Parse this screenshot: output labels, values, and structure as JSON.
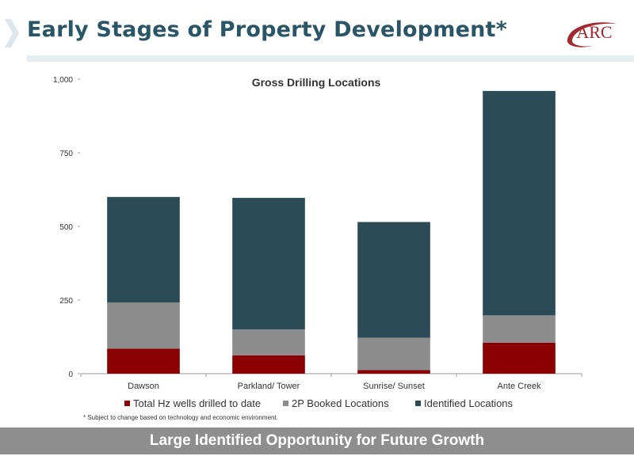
{
  "slide": {
    "title": "Early Stages of Property Development",
    "title_mark": "*",
    "logo_text": "ARC",
    "footnote": "* Subject to change based on technology and economic environment.",
    "banner": "Large Identified Opportunity for Future Growth"
  },
  "colors": {
    "title": "#2a5566",
    "logo": "#a3282f",
    "banner": "#8e8e8e",
    "series": [
      "#8b0000",
      "#8c8c8c",
      "#2b4b57"
    ]
  },
  "chart_data": {
    "type": "bar",
    "stacked": true,
    "title": "Gross Drilling Locations",
    "xlabel": "",
    "ylabel": "",
    "categories": [
      "Dawson",
      "Parkland/ Tower",
      "Sunrise/ Sunset",
      "Ante Creek"
    ],
    "ylim": [
      0,
      1000
    ],
    "yticks": [
      0,
      250,
      500,
      750,
      1000
    ],
    "ytick_labels": [
      "0",
      "250",
      "500",
      "750",
      "1,000"
    ],
    "series": [
      {
        "name": "Total Hz wells drilled to date",
        "values": [
          85,
          62,
          12,
          105
        ]
      },
      {
        "name": "2P Booked Locations",
        "values": [
          157,
          88,
          110,
          93
        ]
      },
      {
        "name": "Identified Locations",
        "values": [
          358,
          447,
          393,
          762
        ]
      }
    ],
    "legend": "bottom",
    "grid": false
  }
}
